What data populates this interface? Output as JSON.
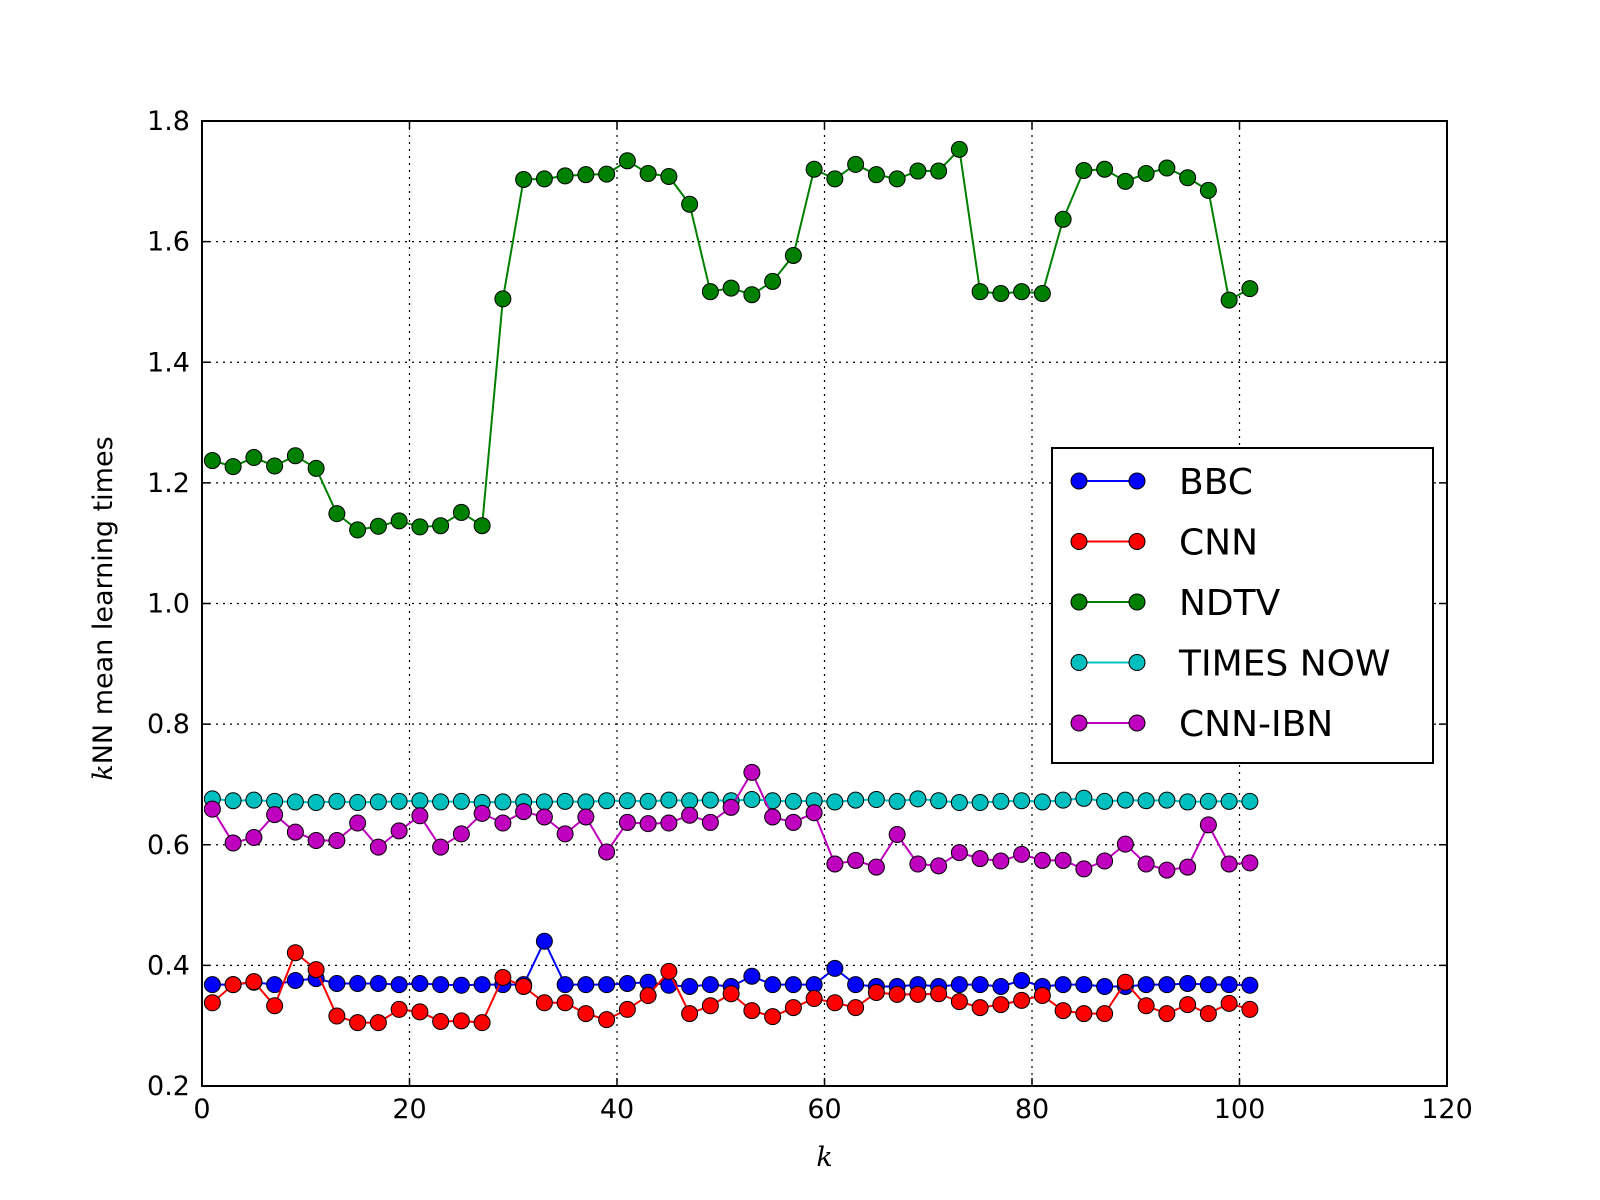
{
  "chart_data": {
    "type": "line",
    "xlabel": "k",
    "ylabel_italic": "k",
    "ylabel_rest": "NN mean learning times",
    "xlim": [
      0,
      120
    ],
    "ylim": [
      0.2,
      1.8
    ],
    "xticks": [
      0,
      20,
      40,
      60,
      80,
      100,
      120
    ],
    "yticks": [
      0.2,
      0.4,
      0.6,
      0.8,
      1.0,
      1.2,
      1.4,
      1.6,
      1.8
    ],
    "xtick_labels": [
      "0",
      "20",
      "40",
      "60",
      "80",
      "100",
      "120"
    ],
    "ytick_labels": [
      "0.2",
      "0.4",
      "0.6",
      "0.8",
      "1.0",
      "1.2",
      "1.4",
      "1.6",
      "1.8"
    ],
    "grid": true,
    "legend_position": "center-right",
    "x": [
      1,
      3,
      5,
      7,
      9,
      11,
      13,
      15,
      17,
      19,
      21,
      23,
      25,
      27,
      29,
      31,
      33,
      35,
      37,
      39,
      41,
      43,
      45,
      47,
      49,
      51,
      53,
      55,
      57,
      59,
      61,
      63,
      65,
      67,
      69,
      71,
      73,
      75,
      77,
      79,
      81,
      83,
      85,
      87,
      89,
      91,
      93,
      95,
      97,
      99,
      101
    ],
    "series": [
      {
        "name": "BBC",
        "color": "#0000ff",
        "values": [
          0.368,
          0.368,
          0.372,
          0.368,
          0.375,
          0.378,
          0.37,
          0.37,
          0.37,
          0.368,
          0.37,
          0.368,
          0.367,
          0.368,
          0.368,
          0.368,
          0.44,
          0.368,
          0.368,
          0.368,
          0.37,
          0.372,
          0.367,
          0.365,
          0.368,
          0.365,
          0.382,
          0.368,
          0.368,
          0.368,
          0.395,
          0.368,
          0.365,
          0.365,
          0.368,
          0.365,
          0.368,
          0.368,
          0.365,
          0.375,
          0.365,
          0.368,
          0.368,
          0.365,
          0.365,
          0.368,
          0.368,
          0.37,
          0.368,
          0.368,
          0.367
        ]
      },
      {
        "name": "CNN",
        "color": "#ff0000",
        "values": [
          0.338,
          0.368,
          0.373,
          0.333,
          0.421,
          0.393,
          0.316,
          0.305,
          0.305,
          0.327,
          0.323,
          0.307,
          0.308,
          0.305,
          0.38,
          0.365,
          0.338,
          0.338,
          0.32,
          0.31,
          0.327,
          0.35,
          0.39,
          0.32,
          0.333,
          0.353,
          0.325,
          0.315,
          0.33,
          0.345,
          0.338,
          0.33,
          0.355,
          0.352,
          0.352,
          0.353,
          0.34,
          0.33,
          0.335,
          0.342,
          0.35,
          0.325,
          0.32,
          0.32,
          0.372,
          0.333,
          0.32,
          0.335,
          0.32,
          0.337,
          0.327
        ]
      },
      {
        "name": "NDTV",
        "color": "#008000",
        "values": [
          1.237,
          1.227,
          1.242,
          1.228,
          1.245,
          1.224,
          1.149,
          1.122,
          1.128,
          1.137,
          1.127,
          1.129,
          1.151,
          1.129,
          1.505,
          1.703,
          1.704,
          1.709,
          1.711,
          1.712,
          1.734,
          1.713,
          1.708,
          1.662,
          1.517,
          1.523,
          1.512,
          1.534,
          1.577,
          1.72,
          1.704,
          1.728,
          1.711,
          1.704,
          1.717,
          1.717,
          1.753,
          1.517,
          1.514,
          1.517,
          1.514,
          1.637,
          1.718,
          1.72,
          1.7,
          1.713,
          1.722,
          1.706,
          1.685,
          1.503,
          1.522
        ]
      },
      {
        "name": "TIMES NOW",
        "color": "#00bfbf",
        "values": [
          0.676,
          0.673,
          0.674,
          0.672,
          0.671,
          0.67,
          0.672,
          0.67,
          0.671,
          0.672,
          0.673,
          0.671,
          0.672,
          0.67,
          0.671,
          0.671,
          0.671,
          0.672,
          0.671,
          0.673,
          0.673,
          0.672,
          0.674,
          0.673,
          0.674,
          0.673,
          0.675,
          0.673,
          0.672,
          0.673,
          0.671,
          0.674,
          0.675,
          0.672,
          0.676,
          0.673,
          0.67,
          0.67,
          0.672,
          0.673,
          0.671,
          0.674,
          0.677,
          0.672,
          0.674,
          0.673,
          0.674,
          0.671,
          0.672,
          0.672,
          0.672
        ]
      },
      {
        "name": "CNN-IBN",
        "color": "#bf00bf",
        "values": [
          0.659,
          0.603,
          0.612,
          0.65,
          0.621,
          0.607,
          0.607,
          0.636,
          0.596,
          0.623,
          0.648,
          0.596,
          0.618,
          0.652,
          0.636,
          0.655,
          0.646,
          0.618,
          0.646,
          0.588,
          0.637,
          0.635,
          0.636,
          0.649,
          0.637,
          0.662,
          0.72,
          0.646,
          0.637,
          0.653,
          0.568,
          0.574,
          0.563,
          0.617,
          0.568,
          0.565,
          0.587,
          0.577,
          0.573,
          0.584,
          0.574,
          0.574,
          0.56,
          0.573,
          0.601,
          0.568,
          0.558,
          0.563,
          0.633,
          0.568,
          0.57
        ]
      }
    ]
  }
}
